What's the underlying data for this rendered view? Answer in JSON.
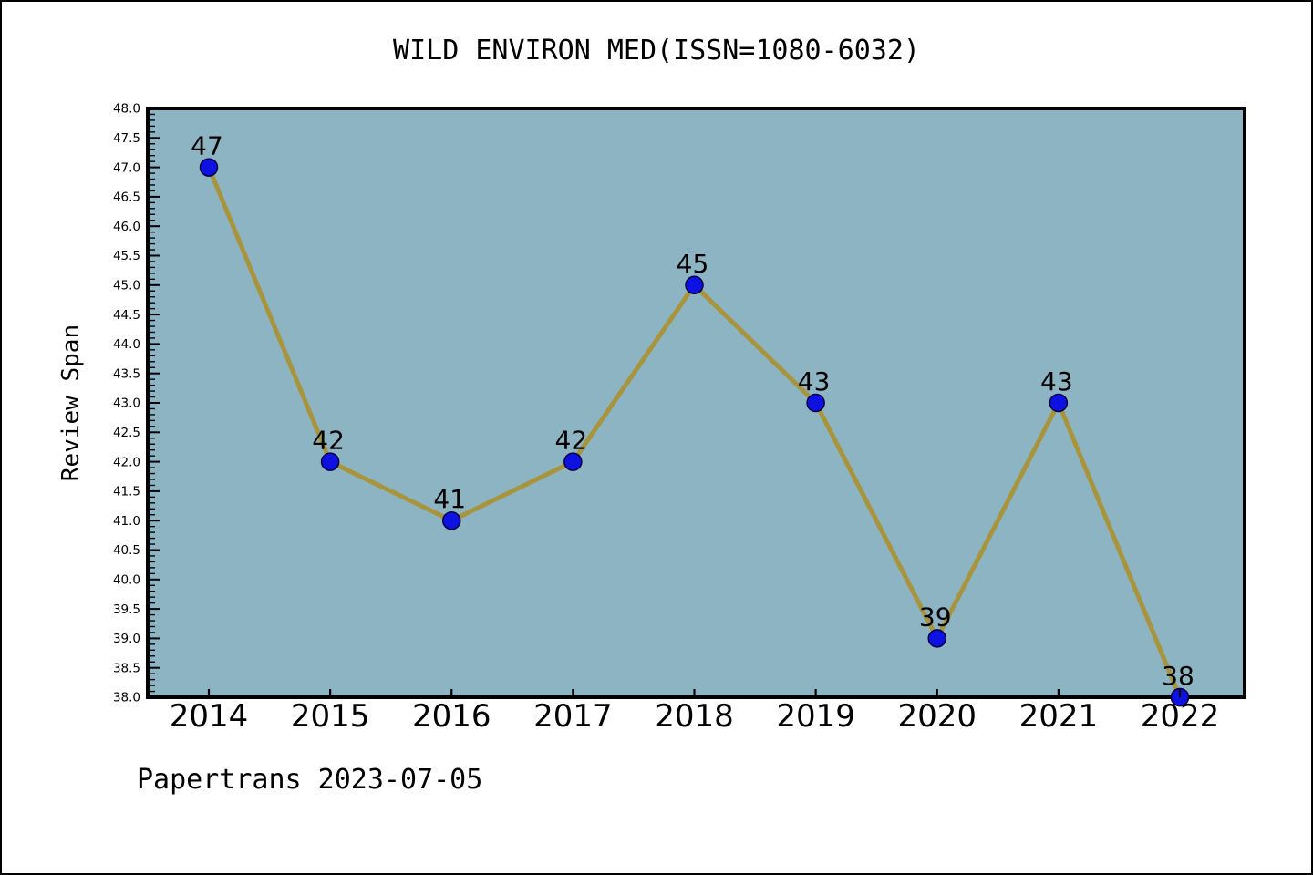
{
  "figure": {
    "footer": "Papertrans 2023-07-05"
  },
  "chart_data": {
    "type": "line",
    "title": "WILD ENVIRON MED(ISSN=1080-6032)",
    "xlabel": "",
    "ylabel": "Review Span",
    "x": [
      "2014",
      "2015",
      "2016",
      "2017",
      "2018",
      "2019",
      "2020",
      "2021",
      "2022"
    ],
    "values": [
      47,
      42,
      41,
      42,
      45,
      43,
      39,
      43,
      38
    ],
    "point_labels": [
      "47",
      "42",
      "41",
      "42",
      "45",
      "43",
      "39",
      "43",
      "38"
    ],
    "ylim": [
      38,
      48
    ],
    "ytick_major_step": 0.5,
    "ytick_minor_step": 0.1,
    "ytick_label_format_decimals": 1,
    "grid": false,
    "legend": "none",
    "colors": {
      "plot_bg": "#8db4c2",
      "line": "#a8943c",
      "marker_fill": "#0d12e2",
      "marker_edge": "#000040",
      "axis": "#000000",
      "text": "#000000"
    }
  }
}
